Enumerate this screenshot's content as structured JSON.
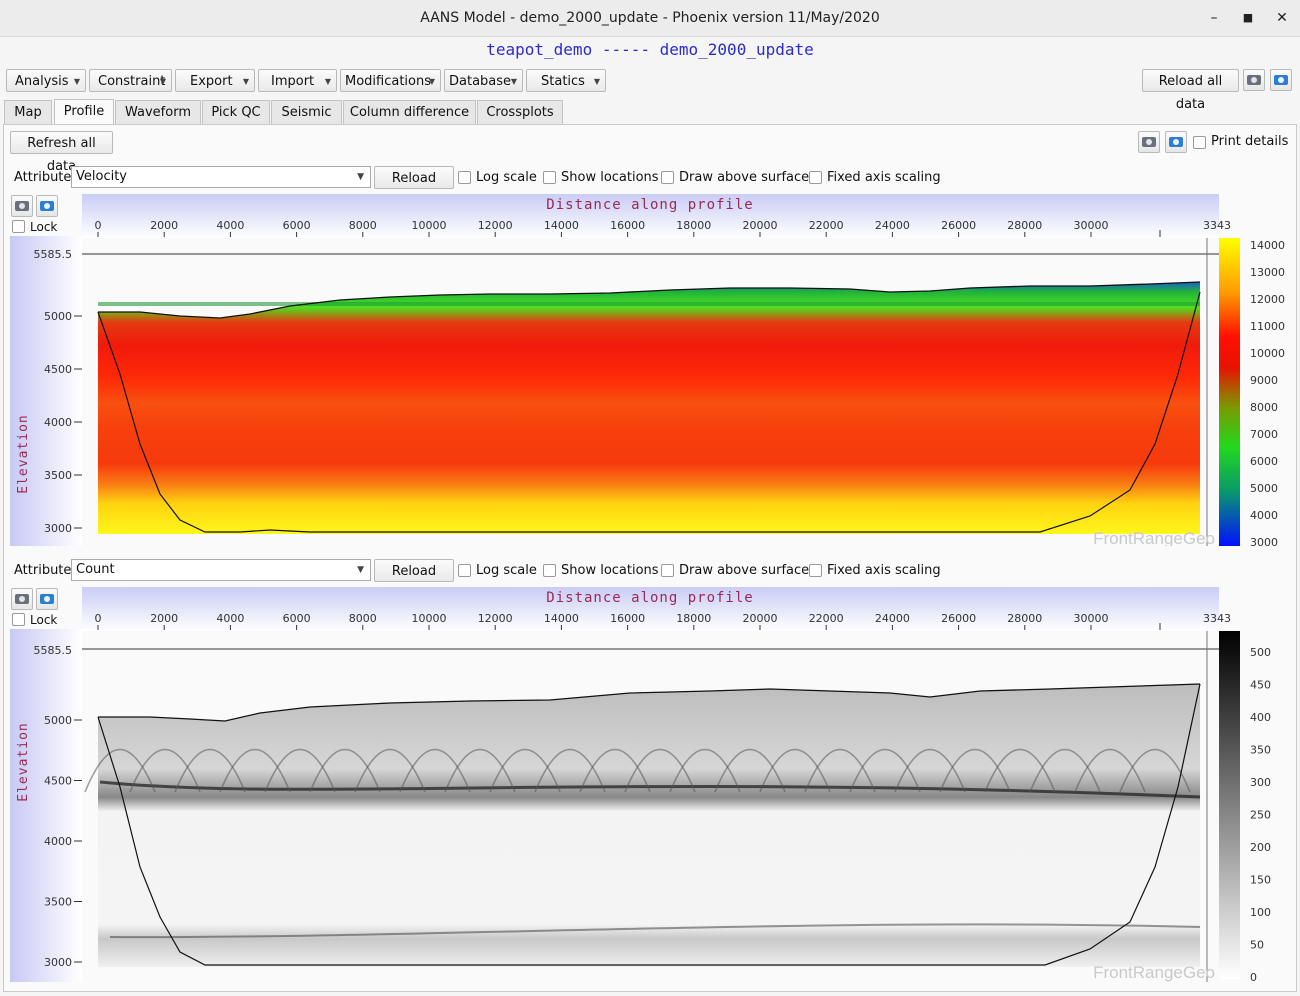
{
  "window": {
    "title": "AANS Model - demo_2000_update - Phoenix version 11/May/2020",
    "minimize": "–",
    "maximize": "■",
    "close": "✕"
  },
  "project_title": "teapot_demo ----- demo_2000_update",
  "menus": [
    "Analysis",
    "Constraint",
    "Export",
    "Import",
    "Modifications",
    "Database",
    "Statics"
  ],
  "toolbar": {
    "reload_all": "Reload all data"
  },
  "tabs": [
    "Map",
    "Profile",
    "Waveform",
    "Pick QC",
    "Seismic",
    "Column difference",
    "Crossplots"
  ],
  "active_tab": "Profile",
  "panel": {
    "refresh_all": "Refresh all data",
    "print_details": "Print details"
  },
  "common": {
    "attribute_label": "Attribute",
    "reload": "Reload",
    "log_scale": "Log scale",
    "show_locations": "Show locations",
    "draw_above_surface": "Draw above surface",
    "fixed_axis_scaling": "Fixed axis scaling",
    "lock": "Lock",
    "x_axis_title": "Distance along profile",
    "y_axis_title": "Elevation",
    "top_elevation_label": "5585.5",
    "x_end_label": "3343",
    "watermark": "FrontRangeGeo"
  },
  "plot1": {
    "attribute": "Velocity",
    "x_ticks": [
      "0",
      "2000",
      "4000",
      "6000",
      "8000",
      "10000",
      "12000",
      "14000",
      "16000",
      "18000",
      "20000",
      "22000",
      "24000",
      "26000",
      "28000",
      "30000"
    ],
    "y_ticks": [
      "5000",
      "4500",
      "4000",
      "3500",
      "3000"
    ],
    "colorbar_ticks": [
      "14000",
      "13000",
      "12000",
      "11000",
      "10000",
      "9000",
      "8000",
      "7000",
      "6000",
      "5000",
      "4000",
      "3000"
    ]
  },
  "plot2": {
    "attribute": "Count",
    "x_ticks": [
      "0",
      "2000",
      "4000",
      "6000",
      "8000",
      "10000",
      "12000",
      "14000",
      "16000",
      "18000",
      "20000",
      "22000",
      "24000",
      "26000",
      "28000",
      "30000"
    ],
    "y_ticks": [
      "5000",
      "4500",
      "4000",
      "3500",
      "3000"
    ],
    "colorbar_ticks": [
      "500",
      "450",
      "400",
      "350",
      "300",
      "250",
      "200",
      "150",
      "100",
      "50",
      "0"
    ]
  },
  "colors": {
    "accent_title": "#2b2bd0",
    "axis_title": "#9a2a55"
  }
}
